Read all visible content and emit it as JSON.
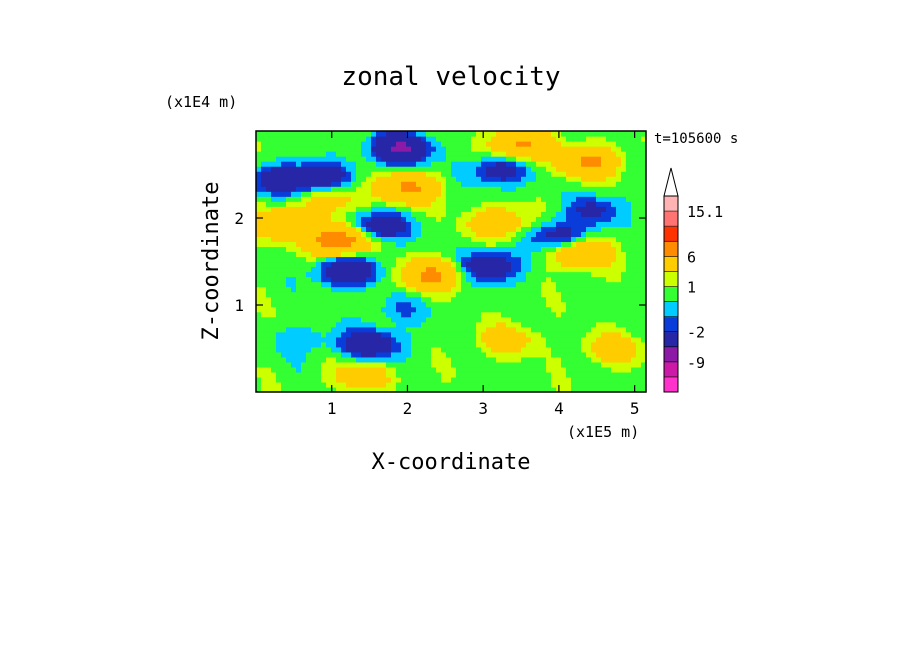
{
  "chart_data": {
    "type": "heatmap",
    "title": "zonal velocity",
    "xlabel": "X-coordinate",
    "ylabel": "Z-coordinate",
    "x_scale_label": "(x1E5 m)",
    "y_scale_label": "(x1E4 m)",
    "time_label": "t=105600 s",
    "xlim": [
      0,
      5.15
    ],
    "ylim": [
      0,
      3.0
    ],
    "x_ticks": [
      1,
      2,
      3,
      4,
      5
    ],
    "y_ticks": [
      1,
      2
    ],
    "colorbar": {
      "levels": [
        -12,
        -9,
        -6,
        -2,
        -1,
        0,
        1,
        2,
        6,
        9,
        12,
        15.1
      ],
      "colors": [
        "#ff33cc",
        "#cc1aa6",
        "#8c1aa6",
        "#2626a6",
        "#0a3cd9",
        "#00ccff",
        "#33ff33",
        "#ccff00",
        "#ffcc00",
        "#ff8c00",
        "#ff3300",
        "#ff7373",
        "#ffb3b3"
      ],
      "tick_labels": [
        "15.1",
        "6",
        "1",
        "-2",
        "-9"
      ],
      "extend_max": true
    },
    "features": [
      {
        "x": 0.4,
        "z": 1.95,
        "u": 5
      },
      {
        "x": 1.1,
        "z": 1.75,
        "u": 9
      },
      {
        "x": 1.0,
        "z": 2.25,
        "u": 3
      },
      {
        "x": 2.0,
        "z": 2.35,
        "u": 6
      },
      {
        "x": 2.3,
        "z": 1.35,
        "u": 6
      },
      {
        "x": 3.2,
        "z": 1.95,
        "u": 4
      },
      {
        "x": 4.4,
        "z": 2.65,
        "u": 6
      },
      {
        "x": 3.5,
        "z": 2.85,
        "u": 6
      },
      {
        "x": 4.3,
        "z": 1.6,
        "u": 5
      },
      {
        "x": 3.3,
        "z": 0.6,
        "u": 3
      },
      {
        "x": 1.4,
        "z": 0.2,
        "u": 3
      },
      {
        "x": 4.7,
        "z": 0.5,
        "u": 3
      },
      {
        "x": 1.9,
        "z": 2.8,
        "u": -7
      },
      {
        "x": 0.85,
        "z": 2.45,
        "u": -5
      },
      {
        "x": 1.2,
        "z": 1.4,
        "u": -6
      },
      {
        "x": 1.6,
        "z": 1.9,
        "u": -5
      },
      {
        "x": 3.1,
        "z": 1.45,
        "u": -5
      },
      {
        "x": 4.0,
        "z": 1.8,
        "u": -4
      },
      {
        "x": 1.5,
        "z": 0.55,
        "u": -5
      },
      {
        "x": 3.2,
        "z": 2.55,
        "u": -4
      },
      {
        "x": 0.3,
        "z": 2.45,
        "u": -4
      },
      {
        "x": 4.5,
        "z": 2.1,
        "u": -3
      },
      {
        "x": 1.9,
        "z": 0.95,
        "u": -1.5
      },
      {
        "x": 0.6,
        "z": 0.6,
        "u": -1.5
      }
    ]
  }
}
